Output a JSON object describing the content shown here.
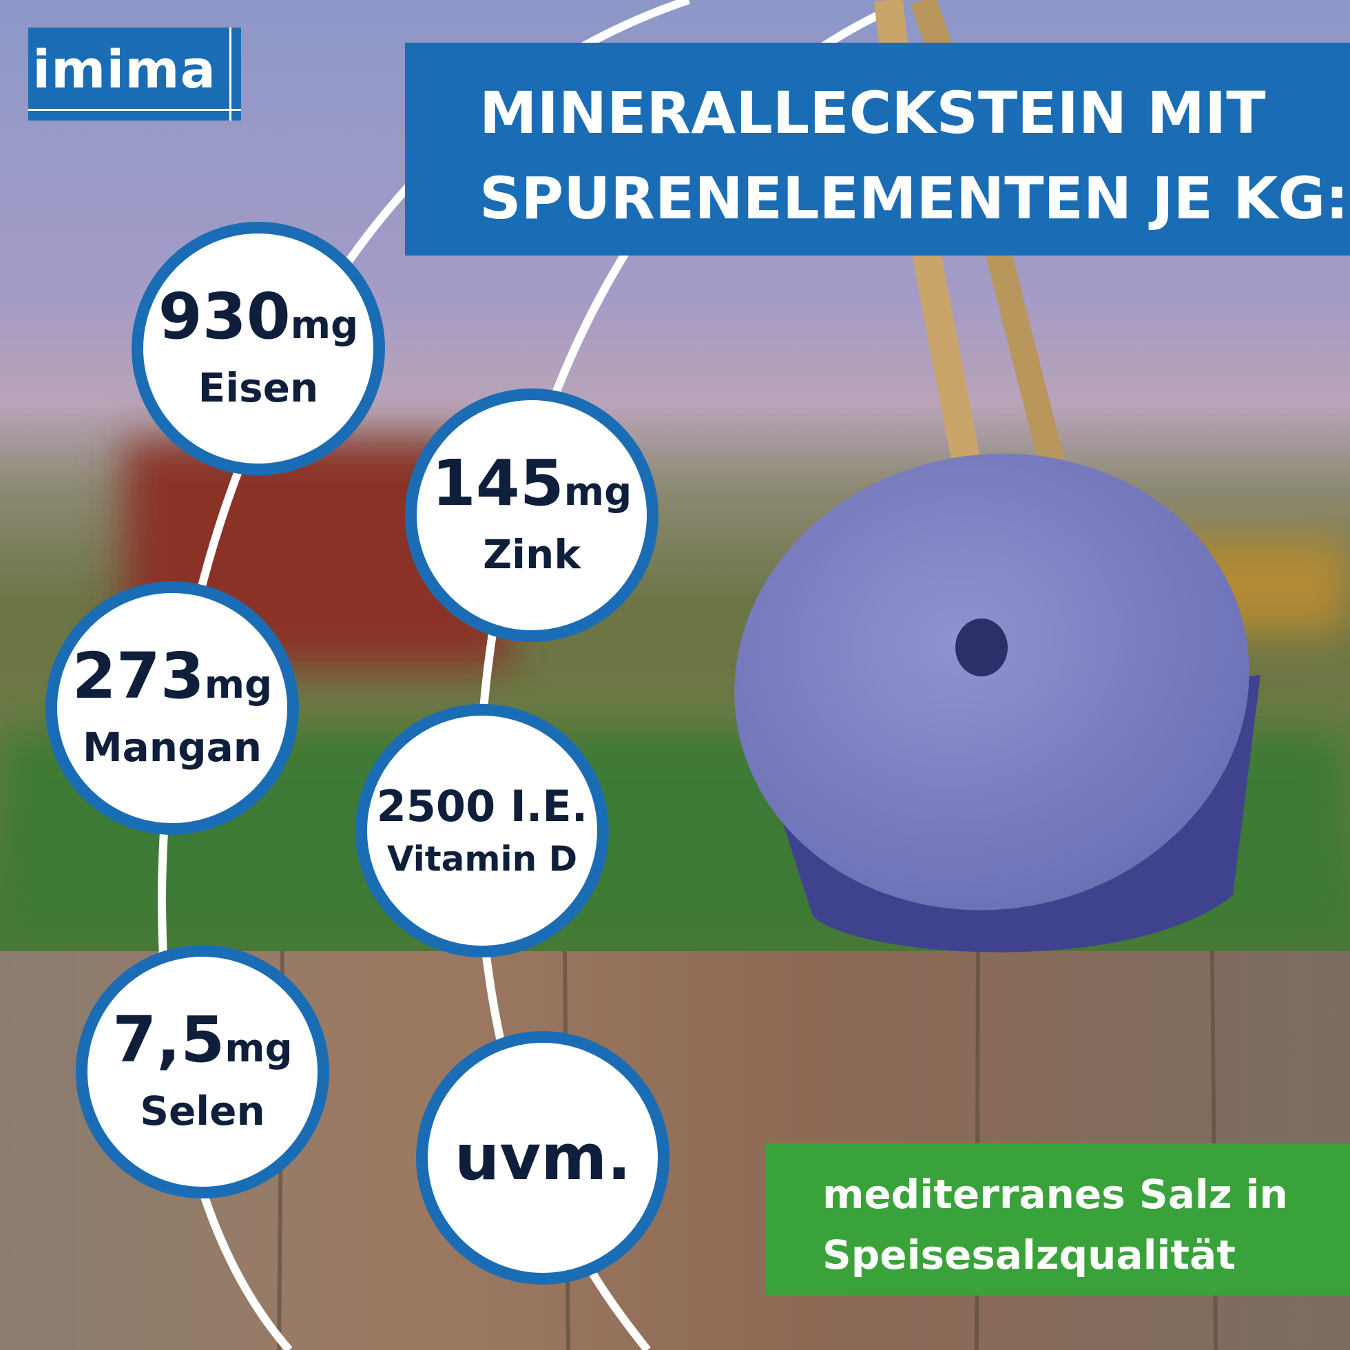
{
  "brand": "imima",
  "title": {
    "lines": [
      "MINERALLECKSTEIN MIT",
      "SPURENELEMENTEN JE KG:"
    ]
  },
  "badges": [
    {
      "value": "930",
      "unit": "mg",
      "label": "Eisen"
    },
    {
      "value": "145",
      "unit": "mg",
      "label": "Zink"
    },
    {
      "value": "273",
      "unit": "mg",
      "label": "Mangan"
    },
    {
      "value": "2500 I.E.",
      "label": "Vitamin D"
    },
    {
      "value": "7,5",
      "unit": "mg",
      "label": "Selen"
    },
    {
      "value": "uvm."
    }
  ],
  "note": {
    "lines": [
      "mediterranes Salz in",
      "Speisesalzqualität"
    ]
  }
}
